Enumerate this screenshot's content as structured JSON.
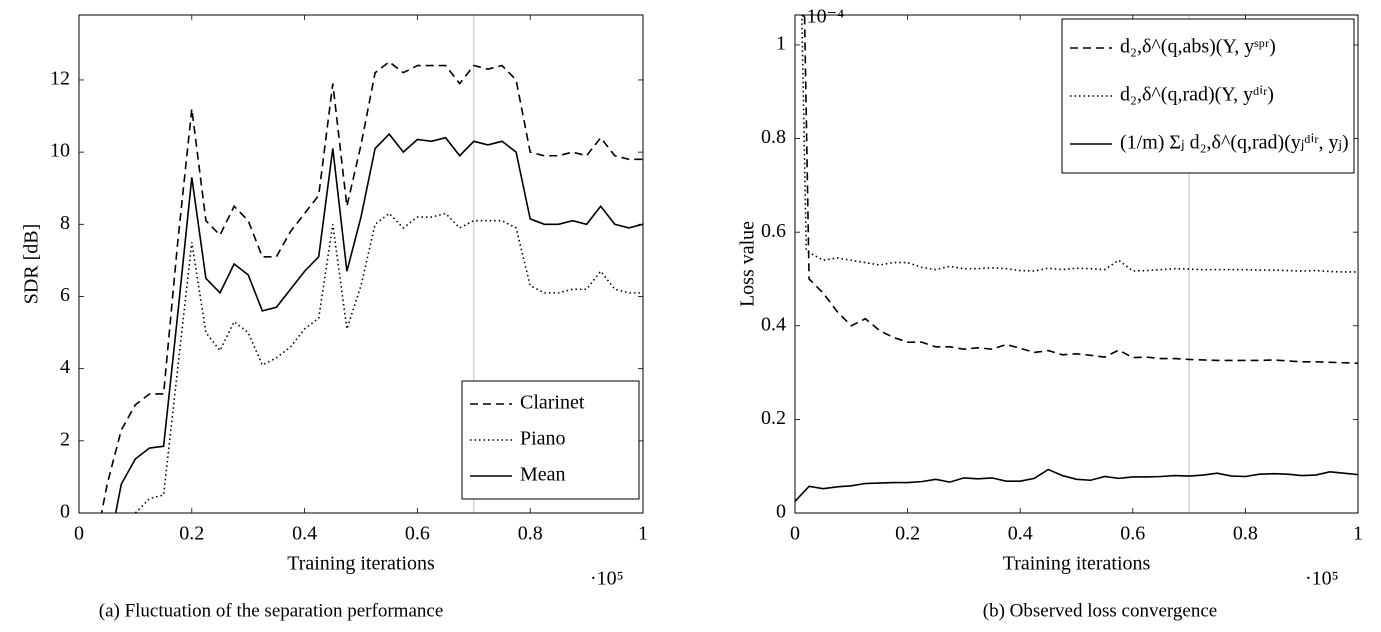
{
  "chart_data": [
    {
      "type": "line",
      "caption": "(a) Fluctuation of the separation performance",
      "x_label": "Training iterations",
      "y_label": "SDR [dB]",
      "x_scale_label": "·10⁵",
      "xlim": [
        0,
        1
      ],
      "ylim": [
        0,
        13.8
      ],
      "xticks": [
        0,
        0.2,
        0.4,
        0.6,
        0.8,
        1
      ],
      "yticks": [
        0,
        2,
        4,
        6,
        8,
        10,
        12
      ],
      "vline": 0.7,
      "vline_color": "#c8c8c8",
      "legend": "lower right",
      "series": [
        {
          "name": "Clarinet",
          "color": "#000000",
          "style": "dashed",
          "x": [
            0.025,
            0.05,
            0.075,
            0.1,
            0.125,
            0.15,
            0.175,
            0.2,
            0.225,
            0.25,
            0.275,
            0.3,
            0.325,
            0.35,
            0.375,
            0.4,
            0.425,
            0.45,
            0.475,
            0.5,
            0.525,
            0.55,
            0.575,
            0.6,
            0.625,
            0.65,
            0.675,
            0.7,
            0.725,
            0.75,
            0.775,
            0.8,
            0.825,
            0.85,
            0.875,
            0.9,
            0.925,
            0.95,
            0.975,
            1
          ],
          "values": [
            -1.2,
            0.8,
            2.3,
            3.0,
            3.3,
            3.3,
            7.5,
            11.2,
            8.1,
            7.7,
            8.5,
            8.1,
            7.1,
            7.1,
            7.8,
            8.3,
            8.8,
            11.9,
            8.5,
            10.2,
            12.2,
            12.5,
            12.2,
            12.4,
            12.4,
            12.4,
            11.9,
            12.4,
            12.3,
            12.4,
            12.0,
            10.0,
            9.9,
            9.9,
            10.0,
            9.9,
            10.4,
            9.9,
            9.8,
            9.8
          ]
        },
        {
          "name": "Piano",
          "color": "#000000",
          "style": "dotted",
          "x": [
            0.1,
            0.125,
            0.15,
            0.175,
            0.2,
            0.225,
            0.25,
            0.275,
            0.3,
            0.325,
            0.35,
            0.375,
            0.4,
            0.425,
            0.45,
            0.475,
            0.5,
            0.525,
            0.55,
            0.575,
            0.6,
            0.625,
            0.65,
            0.675,
            0.7,
            0.725,
            0.75,
            0.775,
            0.8,
            0.825,
            0.85,
            0.875,
            0.9,
            0.925,
            0.95,
            0.975,
            1
          ],
          "values": [
            0.0,
            0.4,
            0.5,
            4.0,
            7.5,
            5.0,
            4.5,
            5.3,
            5.0,
            4.1,
            4.3,
            4.6,
            5.1,
            5.4,
            8.0,
            5.1,
            6.3,
            8.0,
            8.3,
            7.9,
            8.2,
            8.2,
            8.3,
            7.9,
            8.1,
            8.1,
            8.1,
            7.9,
            6.3,
            6.1,
            6.1,
            6.2,
            6.2,
            6.7,
            6.2,
            6.1,
            6.1
          ]
        },
        {
          "name": "Mean",
          "color": "#000000",
          "style": "solid",
          "x": [
            0.05,
            0.075,
            0.1,
            0.125,
            0.15,
            0.175,
            0.2,
            0.225,
            0.25,
            0.275,
            0.3,
            0.325,
            0.35,
            0.375,
            0.4,
            0.425,
            0.45,
            0.475,
            0.5,
            0.525,
            0.55,
            0.575,
            0.6,
            0.625,
            0.65,
            0.675,
            0.7,
            0.725,
            0.75,
            0.775,
            0.8,
            0.825,
            0.85,
            0.875,
            0.9,
            0.925,
            0.95,
            0.975,
            1
          ],
          "values": [
            -1.2,
            0.8,
            1.5,
            1.8,
            1.85,
            5.5,
            9.3,
            6.5,
            6.1,
            6.9,
            6.6,
            5.6,
            5.7,
            6.2,
            6.7,
            7.1,
            10.1,
            6.7,
            8.2,
            10.1,
            10.5,
            10.0,
            10.35,
            10.3,
            10.4,
            9.9,
            10.3,
            10.2,
            10.3,
            10.0,
            8.15,
            8.0,
            8.0,
            8.1,
            8.0,
            8.5,
            8.0,
            7.9,
            8.0
          ]
        }
      ]
    },
    {
      "type": "line",
      "caption": "(b) Observed loss convergence",
      "x_label": "Training iterations",
      "y_label": "Loss value",
      "x_scale_label": "·10⁵",
      "y_scale_label": "·10⁻⁴",
      "xlim": [
        0,
        1
      ],
      "ylim": [
        0,
        1.064
      ],
      "xticks": [
        0,
        0.2,
        0.4,
        0.6,
        0.8,
        1
      ],
      "yticks": [
        0,
        0.2,
        0.4,
        0.6,
        0.8,
        1
      ],
      "vline": 0.7,
      "vline_color": "#c8c8c8",
      "legend": "upper right",
      "series": [
        {
          "name": "d₂,δ^(q,abs)(Y, yˢᵖʳ)",
          "color": "#000000",
          "style": "dashed",
          "x": [
            0.015,
            0.025,
            0.05,
            0.075,
            0.1,
            0.125,
            0.15,
            0.175,
            0.2,
            0.225,
            0.25,
            0.275,
            0.3,
            0.325,
            0.35,
            0.375,
            0.4,
            0.425,
            0.45,
            0.475,
            0.5,
            0.525,
            0.55,
            0.575,
            0.6,
            0.625,
            0.65,
            0.675,
            0.7,
            0.725,
            0.75,
            0.775,
            0.8,
            0.825,
            0.85,
            0.875,
            0.9,
            0.925,
            0.95,
            0.975,
            1
          ],
          "values": [
            1.2,
            0.5,
            0.47,
            0.43,
            0.4,
            0.415,
            0.39,
            0.375,
            0.365,
            0.365,
            0.355,
            0.355,
            0.35,
            0.353,
            0.35,
            0.36,
            0.352,
            0.343,
            0.347,
            0.338,
            0.34,
            0.337,
            0.333,
            0.348,
            0.332,
            0.333,
            0.33,
            0.33,
            0.328,
            0.327,
            0.326,
            0.326,
            0.326,
            0.326,
            0.327,
            0.325,
            0.323,
            0.323,
            0.322,
            0.321,
            0.32
          ]
        },
        {
          "name": "d₂,δ^(q,rad)(Y, yᵈⁱʳ)",
          "color": "#000000",
          "style": "dotted",
          "x": [
            0.01,
            0.02,
            0.05,
            0.075,
            0.1,
            0.125,
            0.15,
            0.175,
            0.2,
            0.225,
            0.25,
            0.275,
            0.3,
            0.325,
            0.35,
            0.375,
            0.4,
            0.425,
            0.45,
            0.475,
            0.5,
            0.525,
            0.55,
            0.575,
            0.6,
            0.625,
            0.65,
            0.675,
            0.7,
            0.725,
            0.75,
            0.775,
            0.8,
            0.825,
            0.85,
            0.875,
            0.9,
            0.925,
            0.95,
            0.975,
            1
          ],
          "values": [
            1.2,
            0.56,
            0.54,
            0.545,
            0.54,
            0.535,
            0.53,
            0.535,
            0.535,
            0.525,
            0.52,
            0.527,
            0.522,
            0.522,
            0.524,
            0.522,
            0.518,
            0.517,
            0.523,
            0.52,
            0.523,
            0.522,
            0.52,
            0.54,
            0.517,
            0.518,
            0.52,
            0.522,
            0.521,
            0.52,
            0.52,
            0.52,
            0.52,
            0.519,
            0.519,
            0.518,
            0.517,
            0.518,
            0.516,
            0.515,
            0.515
          ]
        },
        {
          "name": "(1/m) Σⱼ d₂,δ^(q,rad)(yⱼᵈⁱʳ, yⱼ)",
          "color": "#000000",
          "style": "solid",
          "x": [
            0,
            0.025,
            0.05,
            0.075,
            0.1,
            0.125,
            0.15,
            0.175,
            0.2,
            0.225,
            0.25,
            0.275,
            0.3,
            0.325,
            0.35,
            0.375,
            0.4,
            0.425,
            0.45,
            0.475,
            0.5,
            0.525,
            0.55,
            0.575,
            0.6,
            0.625,
            0.65,
            0.675,
            0.7,
            0.725,
            0.75,
            0.775,
            0.8,
            0.825,
            0.85,
            0.875,
            0.9,
            0.925,
            0.95,
            0.975,
            1
          ],
          "values": [
            0.025,
            0.057,
            0.052,
            0.056,
            0.058,
            0.063,
            0.064,
            0.065,
            0.065,
            0.067,
            0.072,
            0.066,
            0.075,
            0.073,
            0.075,
            0.068,
            0.068,
            0.074,
            0.093,
            0.08,
            0.072,
            0.07,
            0.078,
            0.074,
            0.077,
            0.077,
            0.078,
            0.08,
            0.079,
            0.081,
            0.085,
            0.079,
            0.078,
            0.083,
            0.084,
            0.083,
            0.08,
            0.081,
            0.088,
            0.085,
            0.082
          ]
        }
      ]
    }
  ]
}
